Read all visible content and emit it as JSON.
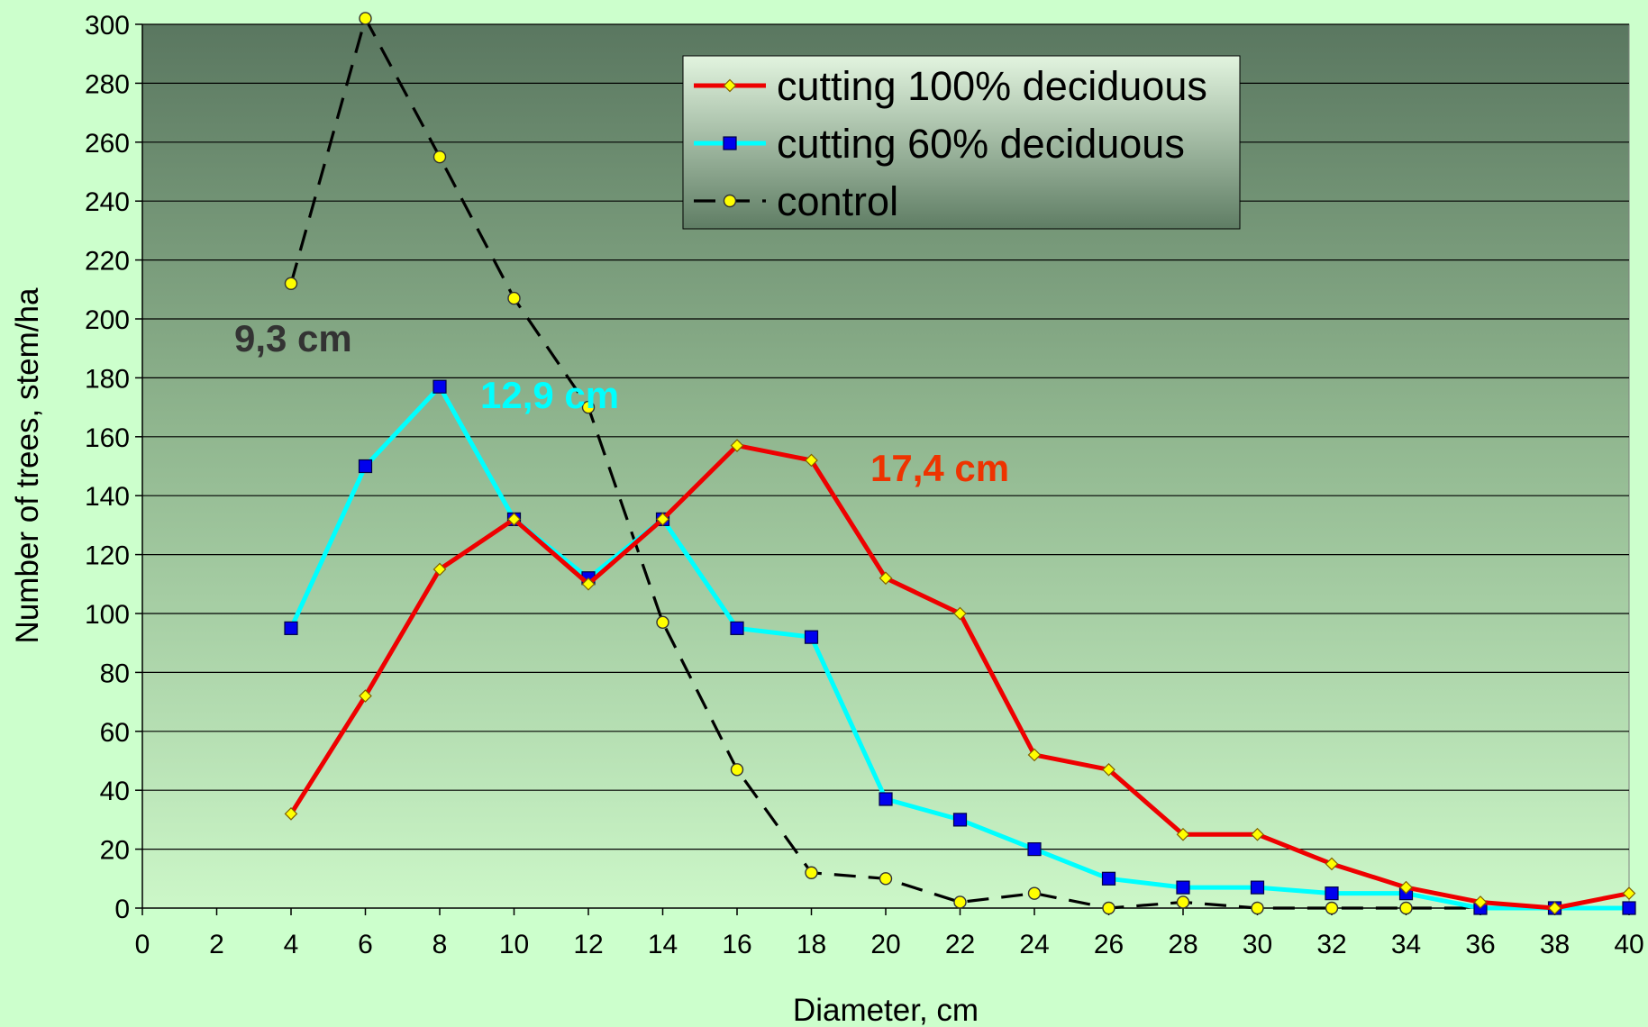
{
  "chart_data": {
    "type": "line",
    "title": "",
    "xlabel": "Diameter, cm",
    "ylabel": "Number of trees, stem/ha",
    "xlim": [
      0,
      40
    ],
    "ylim": [
      0,
      300
    ],
    "x_ticks": [
      "0",
      "2",
      "4",
      "6",
      "8",
      "10",
      "12",
      "14",
      "16",
      "18",
      "20",
      "22",
      "24",
      "26",
      "28",
      "30",
      "32",
      "34",
      "36",
      "38",
      "40"
    ],
    "y_ticks": [
      "0",
      "20",
      "40",
      "60",
      "80",
      "100",
      "120",
      "140",
      "160",
      "180",
      "200",
      "220",
      "240",
      "260",
      "280",
      "300"
    ],
    "grid": true,
    "legend_position": "top-right",
    "x": [
      4,
      6,
      8,
      10,
      12,
      14,
      16,
      18,
      20,
      22,
      24,
      26,
      28,
      30,
      32,
      34,
      36,
      38,
      40
    ],
    "series": [
      {
        "name": "cutting 100% deciduous",
        "color": "#ee0000",
        "marker": "diamond",
        "marker_color": "#ffff00",
        "dash": false,
        "values": [
          32,
          72,
          115,
          132,
          110,
          132,
          157,
          152,
          112,
          100,
          52,
          47,
          25,
          25,
          15,
          7,
          2,
          0,
          5
        ]
      },
      {
        "name": "cutting 60% deciduous",
        "color": "#00ffff",
        "marker": "square",
        "marker_color": "#0000ee",
        "dash": false,
        "values": [
          95,
          150,
          177,
          132,
          112,
          132,
          95,
          92,
          37,
          30,
          20,
          10,
          7,
          7,
          5,
          5,
          0,
          0,
          0
        ]
      },
      {
        "name": "control",
        "color": "#000000",
        "marker": "circle",
        "marker_color": "#ffff00",
        "dash": true,
        "values": [
          212,
          302,
          255,
          207,
          170,
          97,
          47,
          12,
          10,
          2,
          5,
          0,
          2,
          0,
          0,
          0,
          0,
          0,
          0
        ]
      }
    ],
    "annotations": [
      {
        "text": "9,3 cm",
        "color": "#333333"
      },
      {
        "text": "12,9 cm",
        "color": "#00ffff"
      },
      {
        "text": "17,4 cm",
        "color": "#ee3300"
      }
    ]
  }
}
